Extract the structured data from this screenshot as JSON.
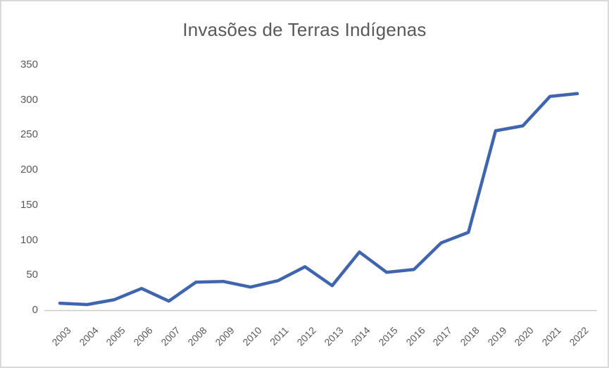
{
  "window": {
    "background_color": "#FFFFFF",
    "border_color": "#D9D9D9"
  },
  "chart_data": {
    "type": "line",
    "title": "Invasões de Terras Indígenas",
    "categories": [
      "2003",
      "2004",
      "2005",
      "2006",
      "2007",
      "2008",
      "2009",
      "2010",
      "2011",
      "2012",
      "2013",
      "2014",
      "2015",
      "2016",
      "2017",
      "2018",
      "2019",
      "2020",
      "2021",
      "2022"
    ],
    "series": [
      {
        "name": "Invasões de Terras Indígenas",
        "values": [
          10,
          8,
          15,
          31,
          13,
          40,
          41,
          33,
          42,
          62,
          35,
          83,
          54,
          58,
          96,
          111,
          256,
          263,
          305,
          309
        ]
      }
    ],
    "xlabel": "",
    "ylabel": "",
    "ylim": [
      0,
      350
    ],
    "yticks": [
      0,
      50,
      100,
      150,
      200,
      250,
      300,
      350
    ],
    "grid": false,
    "legend": "none",
    "line_color": "#4065AF",
    "axis_line_color": "#C9C9C9",
    "text_color": "#595959"
  }
}
